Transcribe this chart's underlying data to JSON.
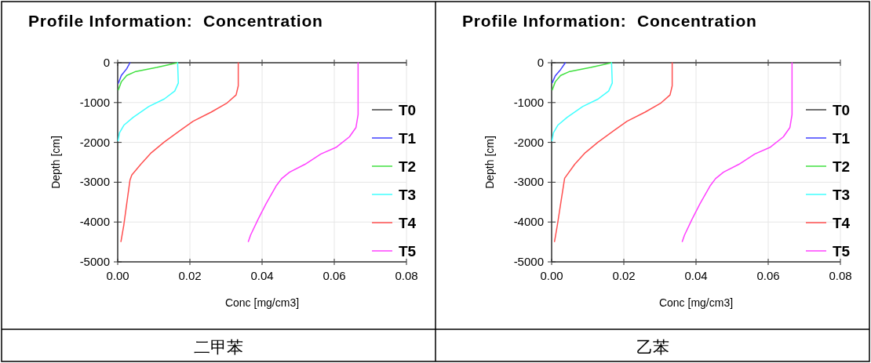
{
  "chart_data": [
    {
      "type": "line",
      "title": "Profile Information:  Concentration",
      "xlabel": "Conc [mg/cm3]",
      "ylabel": "Depth [cm]",
      "xlim": [
        0,
        0.08
      ],
      "xticks": [
        {
          "value": 0,
          "label": "0.00"
        },
        {
          "value": 0.02,
          "label": "0.02"
        },
        {
          "value": 0.04,
          "label": "0.04"
        },
        {
          "value": 0.06,
          "label": "0.06"
        },
        {
          "value": 0.08,
          "label": "0.08"
        }
      ],
      "ylim": [
        -5000,
        0
      ],
      "yticks": [
        0,
        -1000,
        -2000,
        -3000,
        -4000,
        -5000
      ],
      "grid": true,
      "legend": "right",
      "annotations": [
        "二甲苯"
      ],
      "series": [
        {
          "name": "T0",
          "color": "#404040"
        },
        {
          "name": "T1",
          "color": "#4040ff",
          "x": [
            0.0034,
            0.0025,
            0.001,
            0.0002
          ],
          "values": [
            0,
            -150,
            -320,
            -510
          ]
        },
        {
          "name": "T2",
          "color": "#40e040",
          "x": [
            0.0166,
            0.0108,
            0.005,
            0.0025,
            0.001,
            0.0002
          ],
          "values": [
            0,
            -120,
            -220,
            -320,
            -480,
            -680
          ]
        },
        {
          "name": "T3",
          "color": "#40ffff",
          "x": [
            0.0166,
            0.0168,
            0.0158,
            0.0129,
            0.0086,
            0.0043,
            0.0017,
            0.0005,
            0.0001
          ],
          "values": [
            0,
            -510,
            -710,
            -910,
            -1100,
            -1370,
            -1570,
            -1760,
            -1960
          ]
        },
        {
          "name": "T4",
          "color": "#ff5050",
          "x": [
            0.0334,
            0.0334,
            0.0328,
            0.0303,
            0.0259,
            0.0209,
            0.0173,
            0.0129,
            0.0093,
            0.0064,
            0.0039,
            0.0034,
            0.0025,
            0.0017,
            0.0009
          ],
          "values": [
            0,
            -580,
            -810,
            -1010,
            -1240,
            -1470,
            -1700,
            -1990,
            -2260,
            -2550,
            -2820,
            -2950,
            -3540,
            -4070,
            -4490
          ]
        },
        {
          "name": "T5",
          "color": "#ff40ff",
          "x": [
            0.0666,
            0.0666,
            0.066,
            0.0642,
            0.0606,
            0.0563,
            0.0519,
            0.0476,
            0.0454,
            0.044,
            0.0411,
            0.0389,
            0.0368,
            0.0362
          ],
          "values": [
            0,
            -1300,
            -1630,
            -1860,
            -2120,
            -2290,
            -2550,
            -2750,
            -2910,
            -3080,
            -3540,
            -3930,
            -4330,
            -4490
          ]
        }
      ]
    },
    {
      "type": "line",
      "title": "Profile Information:  Concentration",
      "xlabel": "Conc [mg/cm3]",
      "ylabel": "Depth [cm]",
      "xlim": [
        0,
        0.08
      ],
      "xticks": [
        {
          "value": 0,
          "label": "0.00"
        },
        {
          "value": 0.02,
          "label": "0.02"
        },
        {
          "value": 0.04,
          "label": "0.04"
        },
        {
          "value": 0.06,
          "label": "0.06"
        },
        {
          "value": 0.08,
          "label": "0.08"
        }
      ],
      "ylim": [
        -5000,
        0
      ],
      "yticks": [
        0,
        -1000,
        -2000,
        -3000,
        -4000,
        -5000
      ],
      "grid": true,
      "legend": "right",
      "annotations": [
        "乙苯"
      ],
      "series": [
        {
          "name": "T0",
          "color": "#404040"
        },
        {
          "name": "T1",
          "color": "#4040ff",
          "x": [
            0.0038,
            0.0025,
            0.001,
            0.0002
          ],
          "values": [
            0,
            -170,
            -330,
            -500
          ]
        },
        {
          "name": "T2",
          "color": "#40e040",
          "x": [
            0.0166,
            0.0108,
            0.005,
            0.0025,
            0.001,
            0.0002
          ],
          "values": [
            0,
            -120,
            -220,
            -320,
            -480,
            -680
          ]
        },
        {
          "name": "T3",
          "color": "#40ffff",
          "x": [
            0.0166,
            0.0168,
            0.0158,
            0.0129,
            0.0086,
            0.0043,
            0.0017,
            0.0005,
            0.0001
          ],
          "values": [
            0,
            -510,
            -710,
            -910,
            -1100,
            -1370,
            -1570,
            -1760,
            -1960
          ]
        },
        {
          "name": "T4",
          "color": "#ff5050",
          "x": [
            0.0334,
            0.0334,
            0.0328,
            0.0303,
            0.0259,
            0.0209,
            0.0173,
            0.0129,
            0.0093,
            0.0064,
            0.0036,
            0.0025,
            0.0016,
            0.0008
          ],
          "values": [
            0,
            -580,
            -810,
            -1010,
            -1240,
            -1470,
            -1700,
            -1990,
            -2260,
            -2550,
            -2900,
            -3540,
            -4070,
            -4490
          ]
        },
        {
          "name": "T5",
          "color": "#ff40ff",
          "x": [
            0.0666,
            0.0666,
            0.066,
            0.0642,
            0.0606,
            0.0563,
            0.0519,
            0.0476,
            0.0454,
            0.044,
            0.0411,
            0.0389,
            0.0368,
            0.0362
          ],
          "values": [
            0,
            -1300,
            -1630,
            -1860,
            -2120,
            -2290,
            -2550,
            -2750,
            -2910,
            -3080,
            -3540,
            -3930,
            -4330,
            -4490
          ]
        }
      ]
    }
  ]
}
